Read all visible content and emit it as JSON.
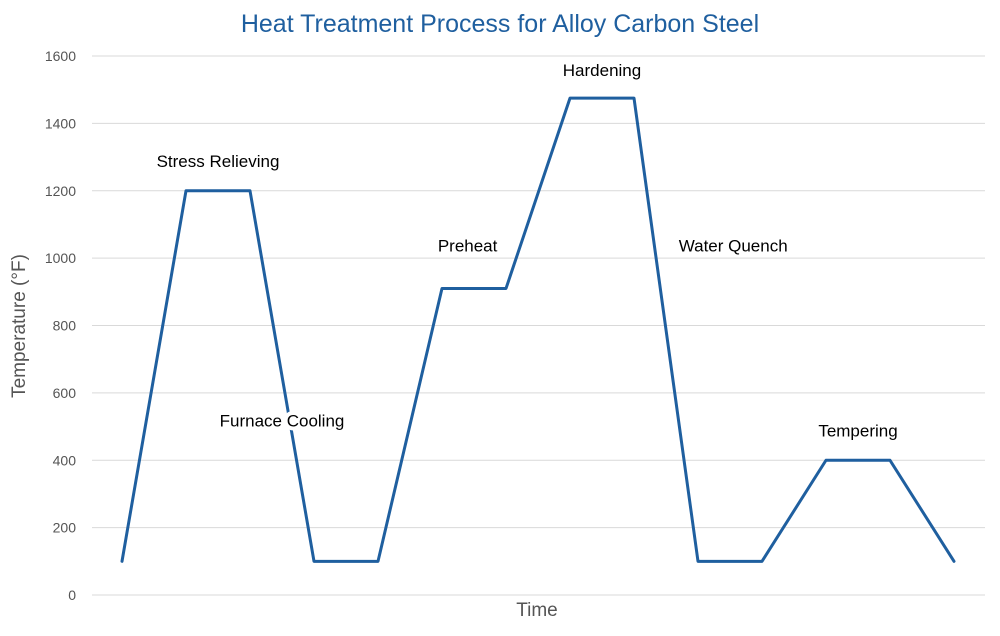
{
  "chart_data": {
    "type": "line",
    "title": "Heat Treatment Process for Alloy Carbon Steel",
    "xlabel": "Time",
    "ylabel": "Temperature (°F)",
    "ylim": [
      0,
      1600
    ],
    "yticks": [
      0,
      200,
      400,
      600,
      800,
      1000,
      1200,
      1400,
      1600
    ],
    "grid": true,
    "legend": "none",
    "line_color": "#1f5f9f",
    "title_color": "#1f5f9f",
    "series": [
      {
        "x": [
          0,
          1,
          2,
          3,
          4,
          5,
          6,
          7,
          8,
          9,
          10,
          11,
          12,
          13
        ],
        "values": [
          100,
          1200,
          1200,
          100,
          100,
          910,
          910,
          1475,
          1475,
          100,
          100,
          400,
          400,
          100
        ]
      }
    ],
    "annotations": [
      {
        "text": "Stress Relieving",
        "x": 1.5,
        "y": 1270
      },
      {
        "text": "Furnace Cooling",
        "x": 2.5,
        "y": 500
      },
      {
        "text": "Preheat",
        "x": 5.4,
        "y": 1020
      },
      {
        "text": "Hardening",
        "x": 7.5,
        "y": 1540
      },
      {
        "text": "Water Quench",
        "x": 9.55,
        "y": 1020
      },
      {
        "text": "Tempering",
        "x": 11.5,
        "y": 470
      }
    ]
  }
}
